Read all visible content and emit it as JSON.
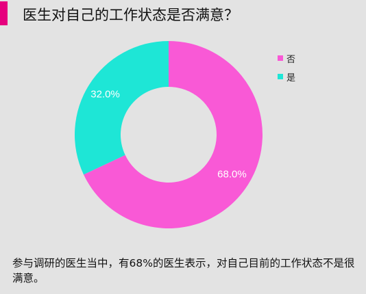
{
  "header": {
    "title": "医生对自己的工作状态是否满意？",
    "accent_color": "#e6007e"
  },
  "chart_data": {
    "type": "pie",
    "style": "donut",
    "title": "医生对自己的工作状态是否满意？",
    "legend_position": "top-right",
    "slices": [
      {
        "label": "否",
        "value": 68.0,
        "value_label": "68.0%",
        "color": "#f959d6"
      },
      {
        "label": "是",
        "value": 32.0,
        "value_label": "32.0%",
        "color": "#1ee6d6"
      }
    ]
  },
  "caption": {
    "text": "参与调研的医生当中，有68%的医生表示，对自己目前的工作状态不是很满意。"
  }
}
